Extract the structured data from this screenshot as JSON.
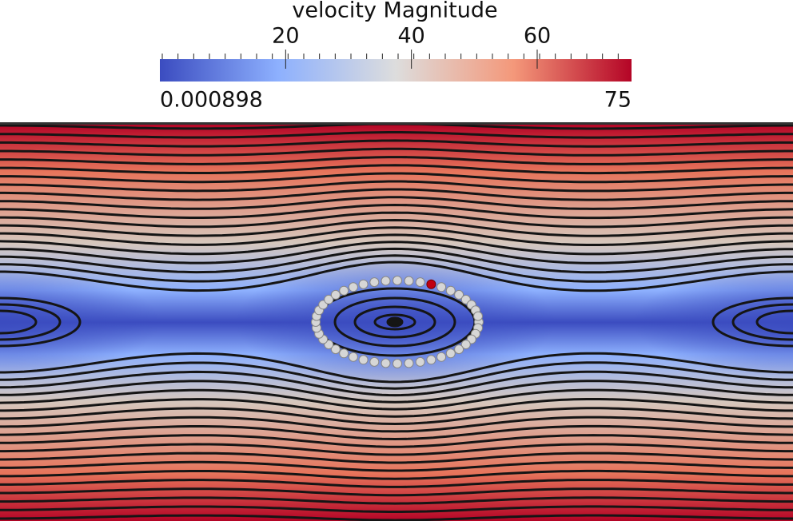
{
  "colorbar": {
    "title": "velocity Magnitude",
    "range": [
      0.000898,
      75
    ],
    "ticks": [
      20,
      40,
      60
    ]
  }
}
